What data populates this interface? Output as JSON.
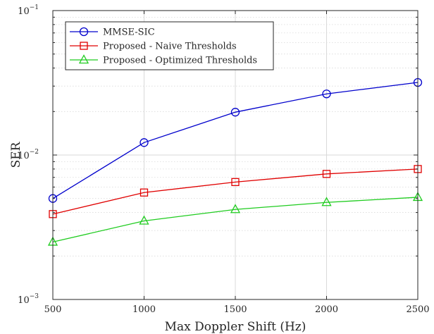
{
  "chart_data": {
    "type": "line",
    "xlabel": "Max Doppler Shift (Hz)",
    "ylabel": "SER",
    "x": [
      500,
      1000,
      1500,
      2000,
      2500
    ],
    "xlim": [
      500,
      2500
    ],
    "xticks": [
      "500",
      "1000",
      "1500",
      "2000",
      "2500"
    ],
    "yscale": "log",
    "ylim": [
      0.001,
      0.1
    ],
    "ytick_labels": [
      {
        "value": 0.1,
        "base": "10",
        "exp": "−1"
      },
      {
        "value": 0.01,
        "base": "10",
        "exp": "−2"
      },
      {
        "value": 0.001,
        "base": "10",
        "exp": "−3"
      }
    ],
    "grid": true,
    "legend_position": "top-left",
    "series": [
      {
        "name": "MMSE-SIC",
        "color": "#0000cc",
        "marker": "circle",
        "values": [
          0.005,
          0.0122,
          0.0198,
          0.0265,
          0.0318
        ]
      },
      {
        "name": "Proposed - Naive Thresholds",
        "color": "#e00000",
        "marker": "square",
        "values": [
          0.0039,
          0.0055,
          0.0065,
          0.0074,
          0.008
        ]
      },
      {
        "name": "Proposed - Optimized Thresholds",
        "color": "#1fcc1f",
        "marker": "triangle",
        "values": [
          0.0025,
          0.0035,
          0.0042,
          0.0047,
          0.0051
        ]
      }
    ]
  }
}
